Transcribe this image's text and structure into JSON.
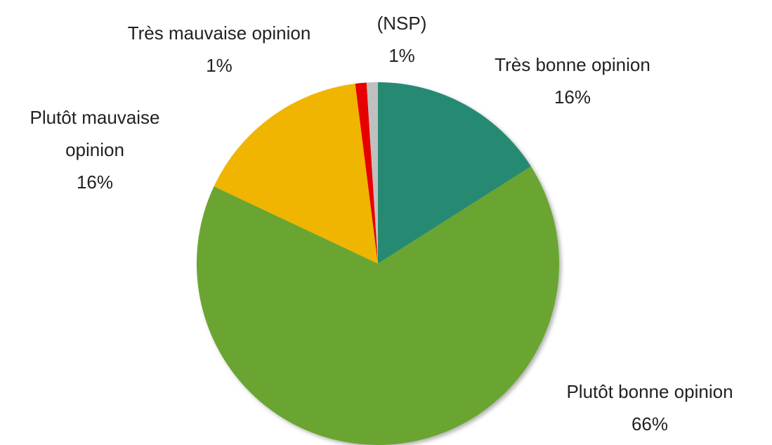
{
  "chart_data": {
    "type": "pie",
    "categories": [
      "Très bonne opinion",
      "Plutôt bonne opinion",
      "Plutôt mauvaise opinion",
      "Très mauvaise opinion",
      "(NSP)"
    ],
    "values": [
      16,
      66,
      16,
      1,
      1
    ],
    "value_labels": [
      "16%",
      "66%",
      "16%",
      "1%",
      "1%"
    ],
    "colors": [
      "#268a73",
      "#6aa531",
      "#efb500",
      "#e80000",
      "#c0c0c0"
    ]
  }
}
